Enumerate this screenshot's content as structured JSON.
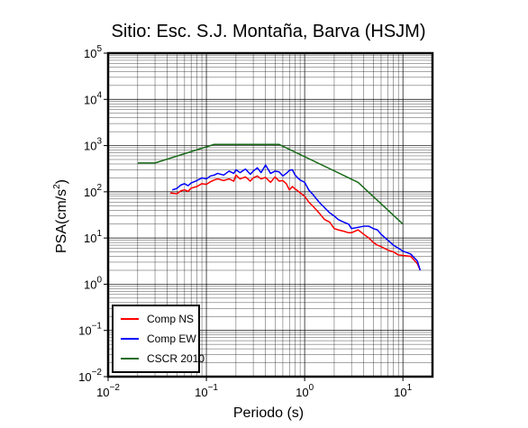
{
  "chart_data": {
    "type": "line",
    "title": "Sitio: Esc. S.J. Montaña, Barva (HSJM)",
    "xlabel": "Periodo (s)",
    "ylabel_main": "PSA(cm/s",
    "ylabel_sup": "2",
    "ylabel_close": ")",
    "x_scale": "log",
    "y_scale": "log",
    "xlim": [
      0.01,
      20
    ],
    "ylim": [
      0.01,
      100000
    ],
    "grid": true,
    "x_ticks": [
      {
        "base": "10",
        "exp": "−2",
        "v": 0.01
      },
      {
        "base": "10",
        "exp": "−1",
        "v": 0.1
      },
      {
        "base": "10",
        "exp": "0",
        "v": 1
      },
      {
        "base": "10",
        "exp": "1",
        "v": 10
      }
    ],
    "y_ticks": [
      {
        "base": "10",
        "exp": "−2",
        "v": 0.01
      },
      {
        "base": "10",
        "exp": "−1",
        "v": 0.1
      },
      {
        "base": "10",
        "exp": "0",
        "v": 1
      },
      {
        "base": "10",
        "exp": "1",
        "v": 10
      },
      {
        "base": "10",
        "exp": "2",
        "v": 100
      },
      {
        "base": "10",
        "exp": "3",
        "v": 1000
      },
      {
        "base": "10",
        "exp": "4",
        "v": 10000
      },
      {
        "base": "10",
        "exp": "5",
        "v": 100000
      }
    ],
    "legend_position": "bottom-left",
    "series": [
      {
        "name": "Comp NS",
        "color": "#ff0000",
        "x": [
          0.043,
          0.05,
          0.055,
          0.06,
          0.065,
          0.07,
          0.08,
          0.09,
          0.1,
          0.11,
          0.12,
          0.13,
          0.15,
          0.17,
          0.19,
          0.2,
          0.22,
          0.25,
          0.28,
          0.3,
          0.33,
          0.36,
          0.4,
          0.45,
          0.5,
          0.55,
          0.6,
          0.65,
          0.7,
          0.75,
          0.8,
          0.85,
          0.9,
          1.0,
          1.1,
          1.2,
          1.4,
          1.6,
          1.8,
          2.0,
          2.2,
          2.5,
          2.8,
          3.0,
          3.5,
          4.0,
          4.5,
          5.0,
          5.5,
          6.0,
          7.0,
          8.0,
          9.0,
          10.0,
          12.0,
          14.0,
          15.0
        ],
        "y": [
          95,
          90,
          105,
          110,
          102,
          120,
          130,
          150,
          145,
          165,
          180,
          190,
          175,
          190,
          170,
          230,
          190,
          210,
          170,
          200,
          220,
          190,
          205,
          160,
          210,
          170,
          175,
          150,
          110,
          130,
          115,
          105,
          95,
          80,
          60,
          50,
          35,
          25,
          22,
          16,
          15,
          14,
          13,
          13,
          15,
          12,
          10,
          8,
          7,
          6.5,
          5.5,
          5,
          4.3,
          4.2,
          4,
          2.8,
          2
        ]
      },
      {
        "name": "Comp EW",
        "color": "#0000ff",
        "x": [
          0.045,
          0.05,
          0.055,
          0.06,
          0.065,
          0.07,
          0.08,
          0.09,
          0.1,
          0.11,
          0.12,
          0.13,
          0.15,
          0.17,
          0.19,
          0.2,
          0.22,
          0.25,
          0.28,
          0.3,
          0.33,
          0.36,
          0.4,
          0.45,
          0.5,
          0.55,
          0.6,
          0.65,
          0.7,
          0.75,
          0.8,
          0.85,
          0.9,
          1.0,
          1.1,
          1.2,
          1.4,
          1.6,
          1.8,
          2.0,
          2.2,
          2.5,
          2.8,
          3.0,
          3.5,
          4.0,
          4.5,
          5.0,
          5.5,
          6.0,
          7.0,
          8.0,
          9.0,
          10.0,
          12.0,
          14.0,
          15.0
        ],
        "y": [
          110,
          118,
          140,
          150,
          135,
          155,
          175,
          200,
          190,
          220,
          230,
          250,
          230,
          280,
          250,
          300,
          260,
          310,
          240,
          280,
          330,
          260,
          380,
          250,
          280,
          270,
          220,
          250,
          290,
          300,
          230,
          200,
          180,
          160,
          110,
          90,
          60,
          45,
          35,
          30,
          25,
          22,
          20,
          16,
          17,
          18,
          18,
          16,
          15,
          12,
          9,
          7,
          6,
          5.2,
          4.5,
          3.2,
          2
        ]
      },
      {
        "name": "CSCR 2010",
        "color": "#1a6b1a",
        "x": [
          0.02,
          0.03,
          0.12,
          0.55,
          3.5,
          10.0
        ],
        "y": [
          420,
          420,
          1060,
          1060,
          160,
          20
        ]
      }
    ]
  }
}
